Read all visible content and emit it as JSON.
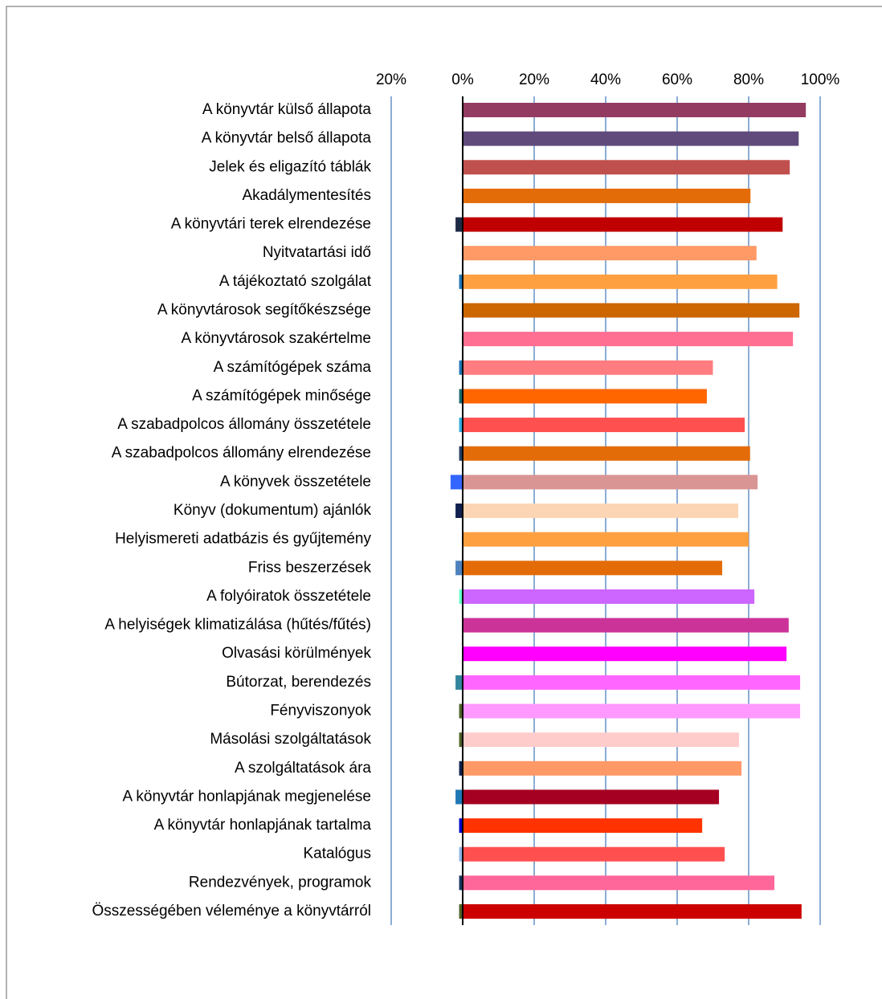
{
  "chart_data": {
    "type": "diverging_bar",
    "categories": [
      "A könyvtár külső állapota",
      "A könyvtár belső állapota",
      "Jelek és eligazító táblák",
      "Akadálymentesítés",
      "A könyvtári terek elrendezése",
      "Nyitvatartási idő",
      "A tájékoztató szolgálat",
      "A könyvtárosok segítőkészsége",
      "A könyvtárosok szakértelme",
      "A számítógépek száma",
      "A számítógépek minősége",
      "A szabadpolcos állomány összetétele",
      "A szabadpolcos állomány elrendezése",
      "A könyvek összetétele",
      "Könyv (dokumentum) ajánlók",
      "Helyismereti adatbázis és gyűjtemény",
      "Friss beszerzések",
      "A folyóiratok összetétele",
      "A helyiségek klimatizálása (hűtés/fűtés)",
      "Olvasási körülmények",
      "Bútorzat, berendezés",
      "Fényviszonyok",
      "Másolási szolgáltatások",
      "A szolgáltatások ára",
      "A könyvtár honlapjának  megjenelése",
      "A könyvtár honlapjának tartalma",
      "Katalógus",
      "Rendezvények, programok",
      "Összességében véleménye a könyvtárról"
    ],
    "series": [
      {
        "values": [
          96,
          94,
          91.5,
          80.5,
          89.5,
          82.2,
          88,
          94.2,
          92.4,
          70,
          68.3,
          78.9,
          80.4,
          82.5,
          77.1,
          80,
          72.6,
          81.6,
          91.2,
          90.6,
          94.4,
          94.4,
          77.3,
          78,
          71.7,
          67,
          73.3,
          87.2,
          94.8
        ],
        "colors": [
          "#943b62",
          "#604a7b",
          "#c0504d",
          "#e36c09",
          "#c00000",
          "#ff9966",
          "#ffa040",
          "#cc6600",
          "#ff6f91",
          "#ff7c80",
          "#ff6600",
          "#ff5050",
          "#e36c09",
          "#d99594",
          "#fcd5b4",
          "#ffa040",
          "#e36c09",
          "#cc66ff",
          "#cc3399",
          "#ff00ff",
          "#ff66ff",
          "#ff99ff",
          "#ffcccc",
          "#ff9966",
          "#a50021",
          "#ff3300",
          "#ff5050",
          "#ff6699",
          "#cc0000"
        ]
      },
      {
        "values": [
          0,
          0,
          0,
          0,
          -2,
          0,
          -1,
          0,
          0,
          -1,
          -1,
          -1,
          -1,
          -3.4,
          -2,
          0,
          -2,
          -1,
          0,
          0,
          -2,
          -1,
          -1,
          -1,
          -2,
          -1,
          -1,
          -1,
          -1
        ],
        "colors": [
          "#17375e",
          "#17375e",
          "#17375e",
          "#17375e",
          "#1f2a44",
          "#17375e",
          "#1f77b4",
          "#17375e",
          "#17375e",
          "#1f77b4",
          "#1d6b6b",
          "#33aadd",
          "#254061",
          "#3366ff",
          "#10204f",
          "#17375e",
          "#4f81bd",
          "#66ffcc",
          "#17375e",
          "#17375e",
          "#31859c",
          "#4f6228",
          "#4f6228",
          "#10204f",
          "#1f77b4",
          "#0000cc",
          "#8eb4e3",
          "#17375e",
          "#4f6228"
        ]
      }
    ],
    "xlim": [
      -20,
      100
    ],
    "xticks": [
      {
        "value": -20,
        "label": "20%"
      },
      {
        "value": 0,
        "label": "0%"
      },
      {
        "value": 20,
        "label": "20%"
      },
      {
        "value": 40,
        "label": "40%"
      },
      {
        "value": 60,
        "label": "60%"
      },
      {
        "value": 80,
        "label": "80%"
      },
      {
        "value": 100,
        "label": "100%"
      }
    ],
    "grid": true
  }
}
